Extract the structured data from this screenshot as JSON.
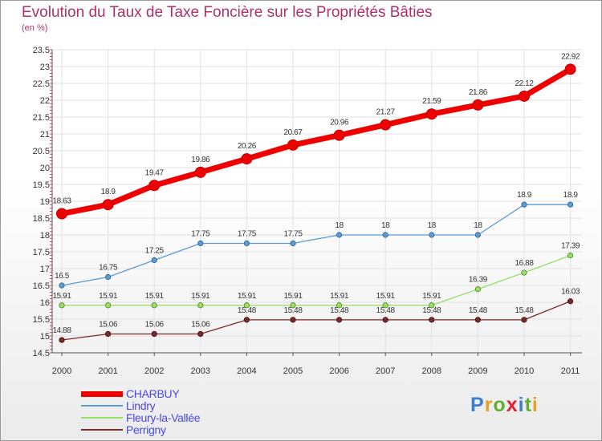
{
  "header": {
    "title": "Evolution du Taux de Taxe Foncière sur les Propriétés Bâties",
    "subtitle": "(en %)"
  },
  "logo": {
    "text": "Proxiti",
    "letter_colors": [
      "#3a7fd0",
      "#e8a020",
      "#60b030",
      "#e02030",
      "#3a7fd0",
      "#60b030",
      "#e8a020"
    ]
  },
  "chart_data": {
    "type": "line",
    "title": "Evolution du Taux de Taxe Foncière sur les Propriétés Bâties",
    "ylabel": "(en %)",
    "x": [
      "2000",
      "2001",
      "2002",
      "2003",
      "2004",
      "2005",
      "2006",
      "2007",
      "2008",
      "2009",
      "2010",
      "2011"
    ],
    "ylim": [
      14.5,
      23.5
    ],
    "yticks": [
      "14.5",
      "15",
      "15.5",
      "16",
      "16.5",
      "17",
      "17.5",
      "18",
      "18.5",
      "19",
      "19.5",
      "20",
      "20.5",
      "21",
      "21.5",
      "22",
      "22.5",
      "23",
      "23.5"
    ],
    "legend_position": "bottom-left",
    "series": [
      {
        "name": "CHARBUY",
        "color": "#ee0000",
        "values": [
          18.63,
          18.9,
          19.47,
          19.86,
          20.26,
          20.67,
          20.96,
          21.27,
          21.59,
          21.86,
          22.12,
          22.92
        ],
        "labels": [
          "18.63",
          "18.9",
          "19.47",
          "19.86",
          "20.26",
          "20.67",
          "20.96",
          "21.27",
          "21.59",
          "21.86",
          "22.12",
          "22.92"
        ]
      },
      {
        "name": "Lindry",
        "color": "#5b9bd5",
        "values": [
          16.5,
          16.75,
          17.25,
          17.75,
          17.75,
          17.75,
          18,
          18,
          18,
          18,
          18.9,
          18.9
        ],
        "labels": [
          "16.5",
          "16.75",
          "17.25",
          "17.75",
          "17.75",
          "17.75",
          "18",
          "18",
          "18",
          "18",
          "18.9",
          "18.9"
        ]
      },
      {
        "name": "Fleury-la-Vallée",
        "color": "#99dd66",
        "values": [
          15.91,
          15.91,
          15.91,
          15.91,
          15.91,
          15.91,
          15.91,
          15.91,
          15.91,
          16.39,
          16.88,
          17.39
        ],
        "labels": [
          "15.91",
          "15.91",
          "15.91",
          "15.91",
          "15.91",
          "15.91",
          "15.91",
          "15.91",
          "15.91",
          "16.39",
          "16.88",
          "17.39"
        ]
      },
      {
        "name": "Perrigny",
        "color": "#7a2a2a",
        "values": [
          14.88,
          15.06,
          15.06,
          15.06,
          15.48,
          15.48,
          15.48,
          15.48,
          15.48,
          15.48,
          15.48,
          16.03
        ],
        "labels": [
          "14.88",
          "15.06",
          "15.06",
          "15.06",
          "15.48",
          "15.48",
          "15.48",
          "15.48",
          "15.48",
          "15.48",
          "15.48",
          "16.03"
        ]
      }
    ]
  }
}
